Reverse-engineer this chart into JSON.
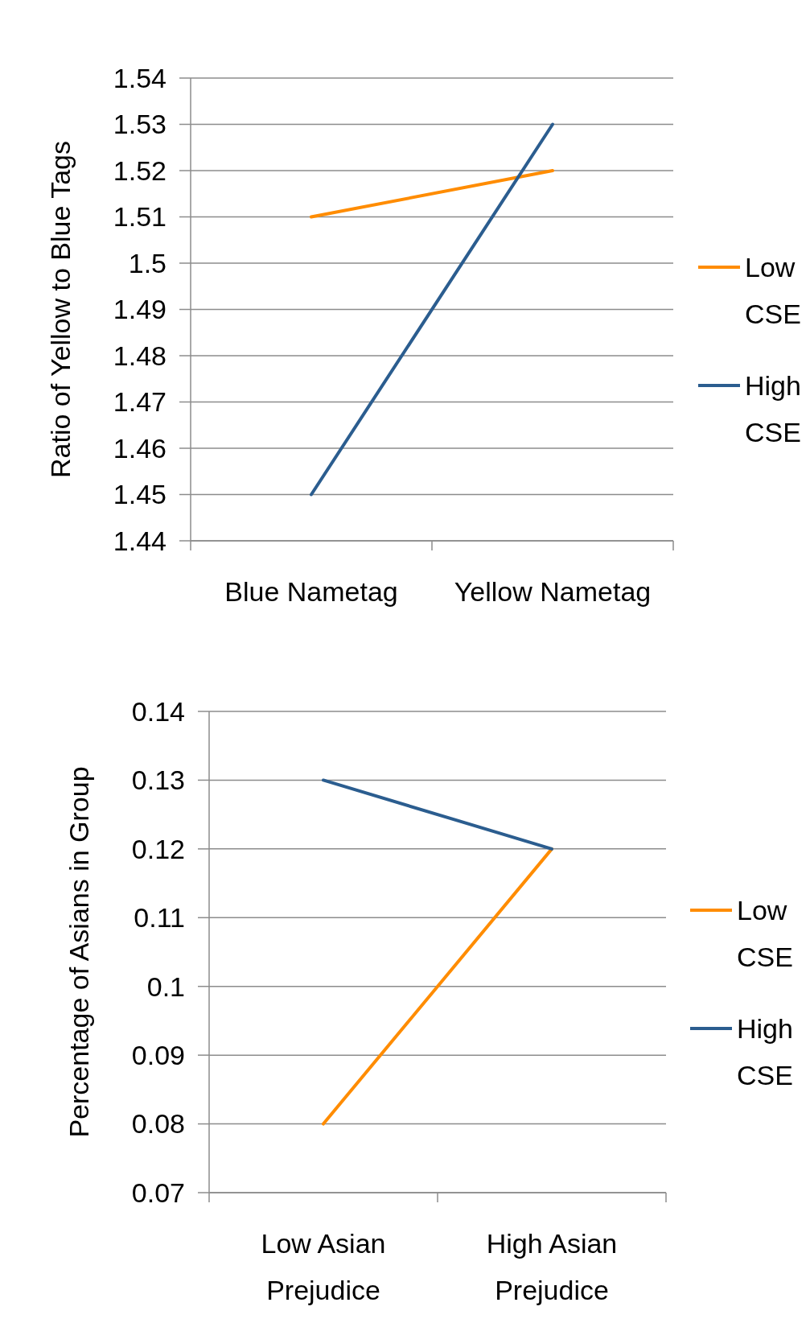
{
  "chart_data": [
    {
      "type": "line",
      "ylabel": "Ratio of Yellow to Blue Tags",
      "categories": [
        "Blue Nametag",
        "Yellow Nametag"
      ],
      "series": [
        {
          "name": "Low CSE",
          "color": "#ff8c00",
          "values": [
            1.51,
            1.52
          ]
        },
        {
          "name": "High CSE",
          "color": "#2b5d8f",
          "values": [
            1.45,
            1.53
          ]
        }
      ],
      "ylim": [
        1.44,
        1.54
      ],
      "yticks": [
        1.44,
        1.45,
        1.46,
        1.47,
        1.48,
        1.49,
        1.5,
        1.51,
        1.52,
        1.53,
        1.54
      ],
      "grid": "y",
      "legend": "right",
      "marker": "none",
      "line_style": "solid"
    },
    {
      "type": "line",
      "ylabel": "Percentage of Asians in Group",
      "categories": [
        "Low Asian Prejudice",
        "High Asian Prejudice"
      ],
      "series": [
        {
          "name": "Low CSE",
          "color": "#ff8c00",
          "values": [
            0.08,
            0.12
          ]
        },
        {
          "name": "High CSE",
          "color": "#2b5d8f",
          "values": [
            0.13,
            0.12
          ]
        }
      ],
      "ylim": [
        0.07,
        0.14
      ],
      "yticks": [
        0.07,
        0.08,
        0.09,
        0.1,
        0.11,
        0.12,
        0.13,
        0.14
      ],
      "grid": "y",
      "legend": "right",
      "marker": "none",
      "line_style": "solid"
    }
  ]
}
